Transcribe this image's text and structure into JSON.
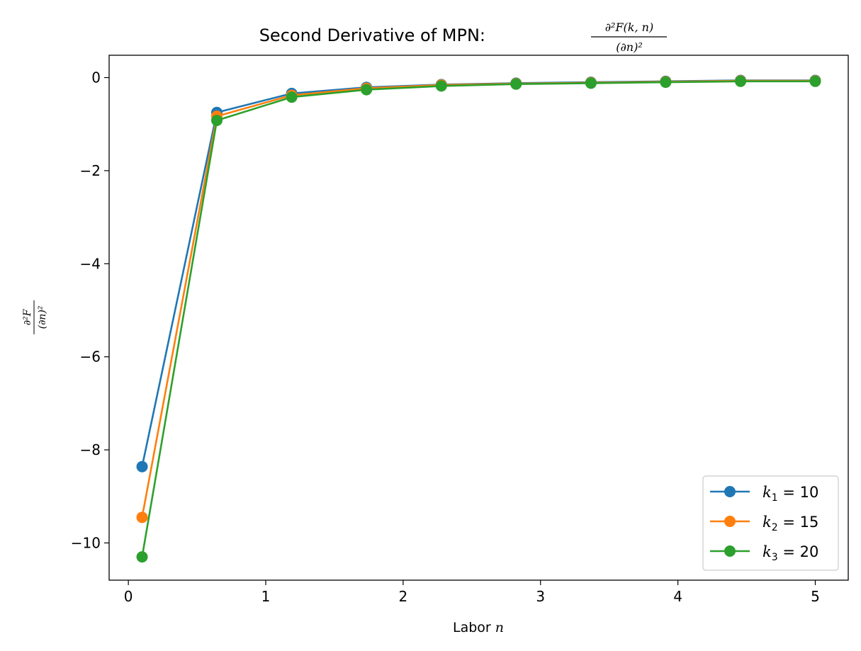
{
  "chart_data": {
    "type": "line",
    "title": "Second Derivative of MPN: ",
    "title_math": {
      "num": "∂²F(k, n)",
      "den": "(∂n)²"
    },
    "xlabel": "Labor ",
    "xlabel_var": "n",
    "ylabel_math": {
      "num": "∂²F",
      "den": "(∂n)²"
    },
    "xlim": [
      -0.14,
      5.24
    ],
    "ylim": [
      -10.8,
      0.48
    ],
    "xticks": [
      0,
      1,
      2,
      3,
      4,
      5
    ],
    "xtick_labels": [
      "0",
      "1",
      "2",
      "3",
      "4",
      "5"
    ],
    "yticks": [
      0,
      -2,
      -4,
      -6,
      -8,
      -10
    ],
    "ytick_labels": [
      "0",
      "−2",
      "−4",
      "−6",
      "−8",
      "−10"
    ],
    "grid": false,
    "legend_position": "lower-right",
    "x": [
      0.1,
      0.644,
      1.189,
      1.733,
      2.278,
      2.822,
      3.367,
      3.911,
      4.456,
      5.0
    ],
    "series": [
      {
        "name": "k1 = 10",
        "legend": {
          "var": "k",
          "sub": "1",
          "rest": " = 10"
        },
        "color": "#1f77b4",
        "values": [
          -8.36,
          -0.75,
          -0.34,
          -0.21,
          -0.15,
          -0.12,
          -0.1,
          -0.08,
          -0.06,
          -0.06
        ]
      },
      {
        "name": "k2 = 15",
        "legend": {
          "var": "k",
          "sub": "2",
          "rest": " = 15"
        },
        "color": "#ff7f0e",
        "values": [
          -9.45,
          -0.83,
          -0.38,
          -0.23,
          -0.16,
          -0.13,
          -0.11,
          -0.09,
          -0.07,
          -0.07
        ]
      },
      {
        "name": "k3 = 20",
        "legend": {
          "var": "k",
          "sub": "3",
          "rest": " = 20"
        },
        "color": "#2ca02c",
        "values": [
          -10.3,
          -0.92,
          -0.42,
          -0.26,
          -0.18,
          -0.14,
          -0.12,
          -0.1,
          -0.08,
          -0.08
        ]
      }
    ]
  }
}
